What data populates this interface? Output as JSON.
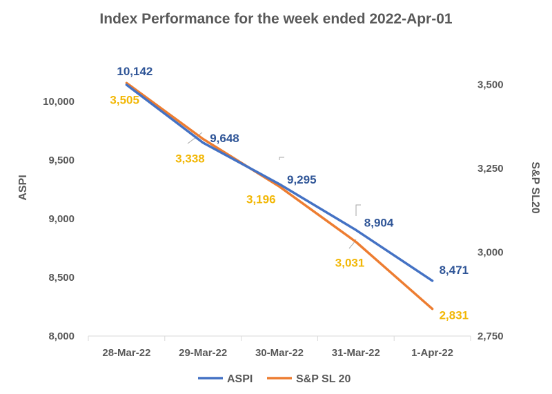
{
  "chart_data": {
    "type": "line",
    "title": "Index Performance for the week ended 2022-Apr-01",
    "categories": [
      "28-Mar-22",
      "29-Mar-22",
      "30-Mar-22",
      "31-Mar-22",
      "1-Apr-22"
    ],
    "y_left": {
      "label": "ASPI",
      "range": [
        8000,
        10500
      ],
      "ticks": [
        "8,000",
        "8,500",
        "9,000",
        "9,500",
        "10,000"
      ],
      "tick_values": [
        8000,
        8500,
        9000,
        9500,
        10000
      ]
    },
    "y_right": {
      "label": "S&P SL20",
      "range": [
        2750,
        3625
      ],
      "ticks": [
        "2,750",
        "3,000",
        "3,250",
        "3,500"
      ],
      "tick_values": [
        2750,
        3000,
        3250,
        3500
      ]
    },
    "series": [
      {
        "name": "ASPI",
        "axis": "left",
        "color": "#4472C4",
        "label_color": "#2F5597",
        "values": [
          10142,
          9648,
          9295,
          8904,
          8471
        ],
        "labels": [
          "10,142",
          "9,648",
          "9,295",
          "8,904",
          "8,471"
        ]
      },
      {
        "name": "S&P SL 20",
        "axis": "right",
        "color": "#ED7D31",
        "label_color": "#F2B705",
        "values": [
          3505,
          3338,
          3196,
          3031,
          2831
        ],
        "labels": [
          "3,505",
          "3,338",
          "3,196",
          "3,031",
          "2,831"
        ]
      }
    ],
    "grid": false,
    "legend_position": "bottom"
  }
}
